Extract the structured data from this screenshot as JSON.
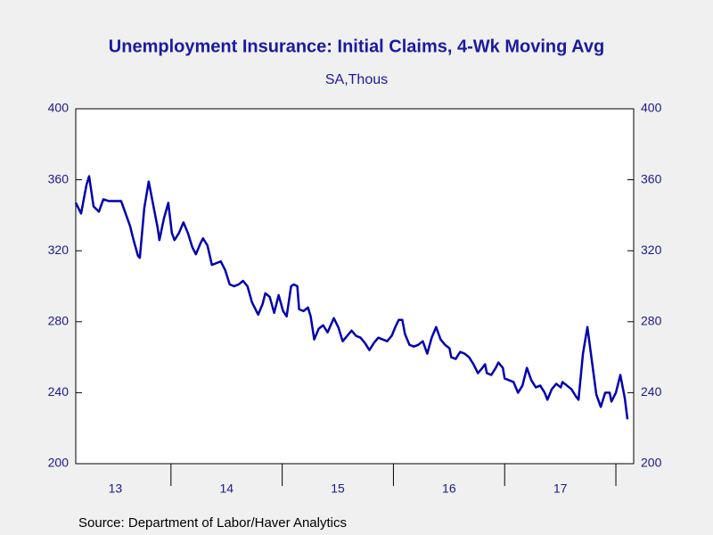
{
  "chart_data": {
    "type": "line",
    "title": "Unemployment Insurance: Initial Claims, 4-Wk Moving Avg",
    "subtitle": "SA,Thous",
    "source": "Source:  Department of Labor/Haver Analytics",
    "xlim": [
      2013.144,
      2018.16
    ],
    "xticks": [
      {
        "value": 2013.5,
        "label": "13"
      },
      {
        "value": 2014.5,
        "label": "14"
      },
      {
        "value": 2015.5,
        "label": "15"
      },
      {
        "value": 2016.5,
        "label": "16"
      },
      {
        "value": 2017.5,
        "label": "17"
      }
    ],
    "xtick_marks": [
      2014,
      2015,
      2016,
      2017,
      2018
    ],
    "ylim": [
      200,
      400
    ],
    "yticks": [
      200,
      240,
      280,
      320,
      360,
      400
    ],
    "y2lim": [
      200,
      400
    ],
    "y2ticks": [
      200,
      240,
      280,
      320,
      360,
      400
    ],
    "grid": false,
    "series": [
      {
        "color": "#0000b0",
        "x": [
          2013.144,
          2013.192,
          2013.24,
          2013.264,
          2013.304,
          2013.352,
          2013.392,
          2013.44,
          2013.48,
          2013.512,
          2013.552,
          2013.592,
          2013.632,
          2013.664,
          2013.704,
          2013.72,
          2013.76,
          2013.8,
          2013.84,
          2013.88,
          2013.896,
          2013.936,
          2013.976,
          2014.008,
          2014.032,
          2014.072,
          2014.112,
          2014.152,
          2014.192,
          2014.224,
          2014.264,
          2014.288,
          2014.328,
          2014.368,
          2014.408,
          2014.448,
          2014.488,
          2014.528,
          2014.568,
          2014.608,
          2014.648,
          2014.688,
          2014.728,
          2014.784,
          2014.824,
          2014.848,
          2014.888,
          2014.928,
          2014.968,
          2015.008,
          2015.04,
          2015.08,
          2015.104,
          2015.136,
          2015.152,
          2015.192,
          2015.232,
          2015.256,
          2015.288,
          2015.328,
          2015.368,
          2015.408,
          2015.464,
          2015.504,
          2015.544,
          2015.584,
          2015.624,
          2015.664,
          2015.704,
          2015.744,
          2015.784,
          2015.824,
          2015.864,
          2015.904,
          2015.944,
          2015.984,
          2016.024,
          2016.048,
          2016.08,
          2016.104,
          2016.144,
          2016.184,
          2016.224,
          2016.264,
          2016.304,
          2016.344,
          2016.384,
          2016.424,
          2016.464,
          2016.504,
          2016.52,
          2016.56,
          2016.6,
          2016.64,
          2016.68,
          2016.72,
          2016.76,
          2016.8,
          2016.824,
          2016.84,
          2016.88,
          2016.92,
          2016.944,
          2016.984,
          2017.0,
          2017.04,
          2017.08,
          2017.12,
          2017.16,
          2017.2,
          2017.24,
          2017.28,
          2017.32,
          2017.36,
          2017.384,
          2017.424,
          2017.464,
          2017.504,
          2017.52,
          2017.56,
          2017.6,
          2017.64,
          2017.664,
          2017.704,
          2017.744,
          2017.784,
          2017.824,
          2017.864,
          2017.904,
          2017.944,
          2017.96,
          2018.0,
          2018.04,
          2018.08,
          2018.104
        ],
        "values": [
          347,
          341,
          357,
          362,
          345,
          342,
          349,
          348,
          348,
          348,
          348,
          341,
          334,
          326,
          317,
          316,
          344,
          359,
          346,
          333,
          326,
          338,
          347,
          330,
          326,
          330,
          336,
          330,
          322,
          318,
          324,
          327,
          323,
          312,
          313,
          314,
          309,
          301,
          300,
          301,
          303,
          300,
          291,
          284,
          290,
          296,
          294,
          285,
          295,
          286,
          283,
          300,
          301,
          300,
          287,
          286,
          288,
          283,
          270,
          276,
          278,
          274,
          282,
          277,
          269,
          272,
          275,
          272,
          271,
          268,
          264,
          268,
          271,
          270,
          269,
          272,
          278,
          281,
          281,
          273,
          267,
          266,
          267,
          269,
          262,
          271,
          277,
          270,
          267,
          265,
          260,
          259,
          263,
          262,
          260,
          256,
          251,
          254,
          256,
          251,
          250,
          254,
          257,
          254,
          248,
          247,
          246,
          240,
          244,
          254,
          247,
          243,
          244,
          240,
          236,
          242,
          245,
          243,
          246,
          244,
          242,
          238,
          236,
          262,
          277,
          258,
          239,
          232,
          240,
          240,
          235,
          240,
          250,
          237,
          225
        ]
      }
    ]
  }
}
